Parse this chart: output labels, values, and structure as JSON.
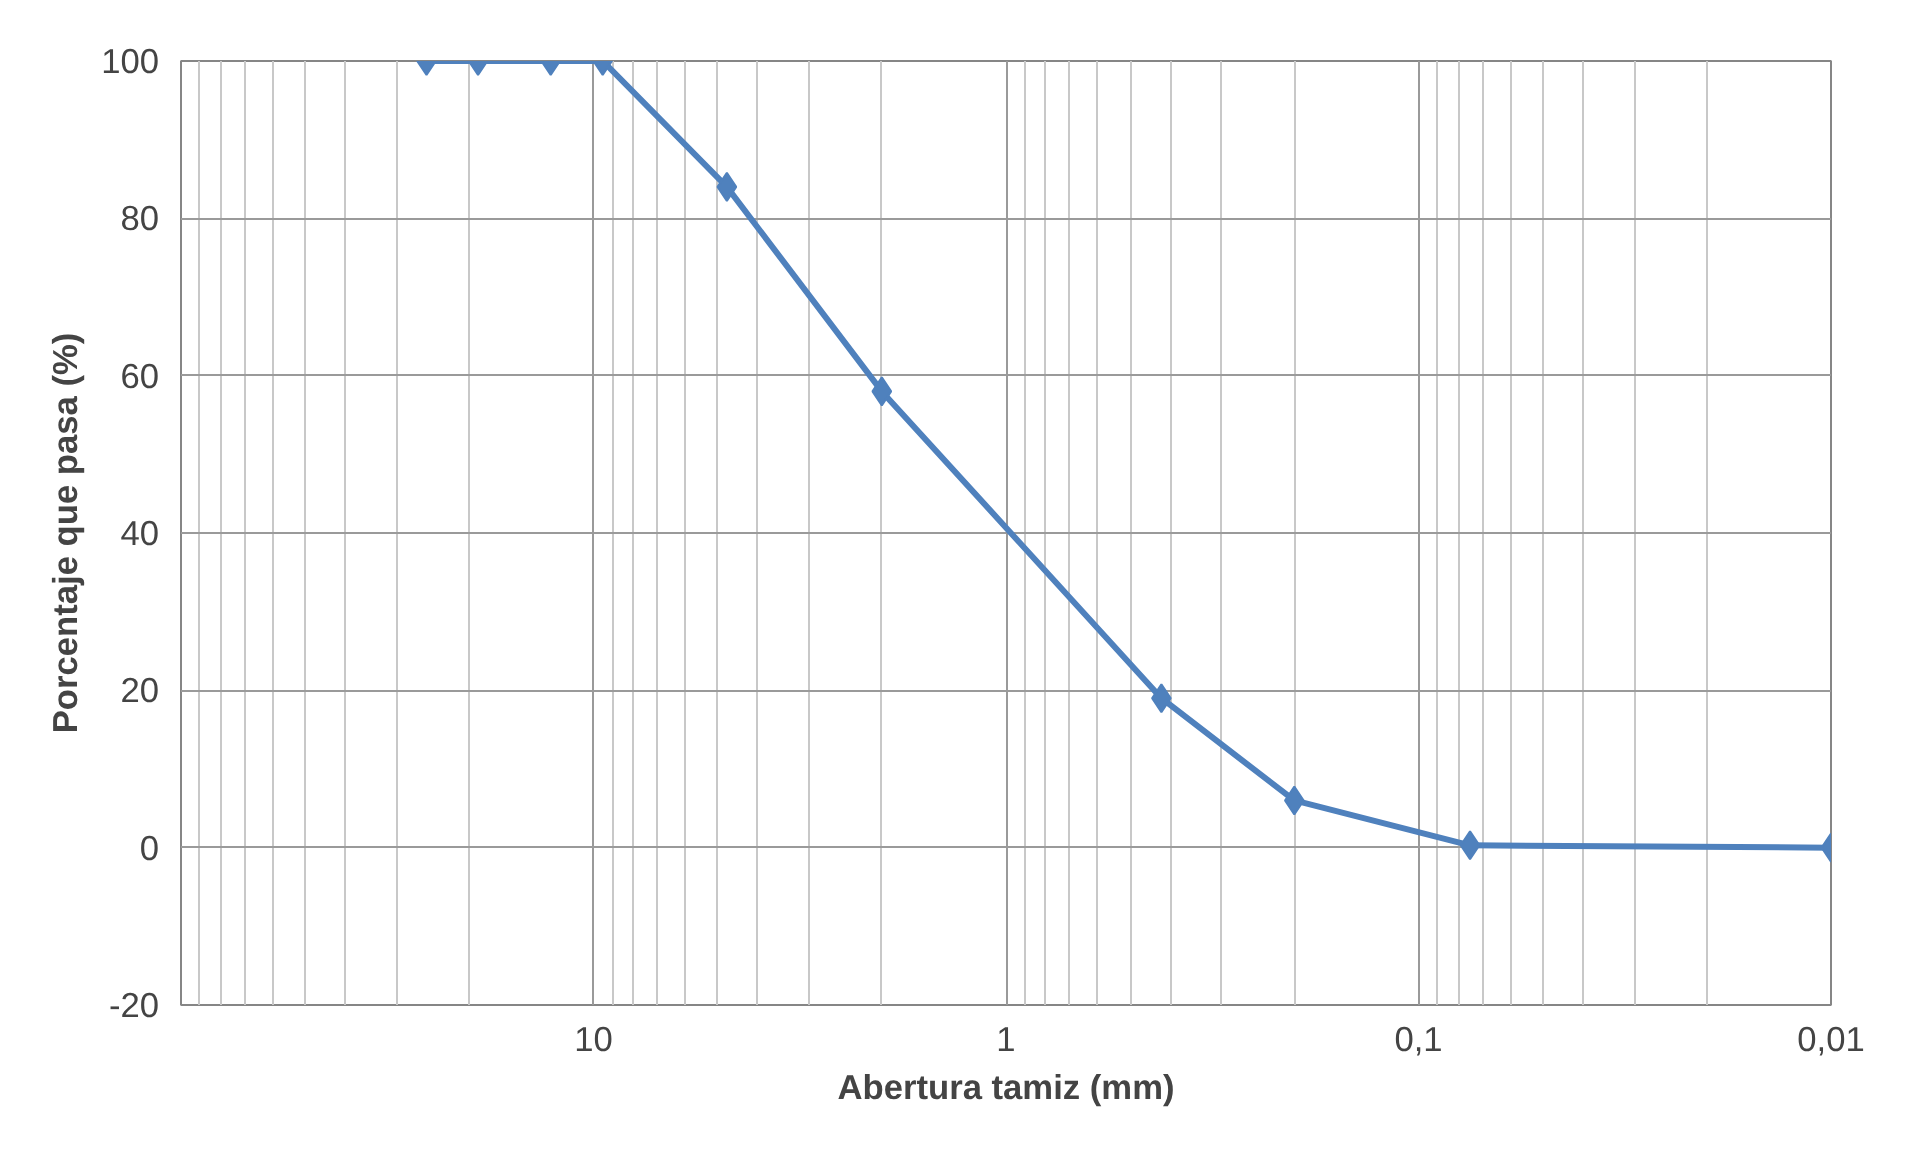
{
  "chart_data": {
    "type": "line",
    "xlabel": "Abertura tamiz (mm)",
    "ylabel": "Porcentaje que pasa (%)",
    "x": [
      25.4,
      19.05,
      12.7,
      9.5,
      4.75,
      2.0,
      0.42,
      0.2,
      0.075,
      0.01
    ],
    "series": [
      {
        "color": "#4f81bd",
        "values": [
          100,
          100,
          100,
          100,
          84,
          58,
          19,
          6,
          0.3,
          0
        ]
      }
    ],
    "log": "x",
    "xlim": [
      100,
      0.01
    ],
    "xticks": [
      {
        "value": 100,
        "label": null
      },
      10,
      1,
      {
        "value": 0.1,
        "label": "0,1"
      },
      {
        "value": 0.01,
        "label": "0,01"
      }
    ],
    "ylim": [
      -20,
      100
    ],
    "yticks": [
      -20,
      0,
      20,
      40,
      60,
      80,
      100
    ],
    "grid": true,
    "marker": "diamond",
    "line_style": "solid"
  }
}
